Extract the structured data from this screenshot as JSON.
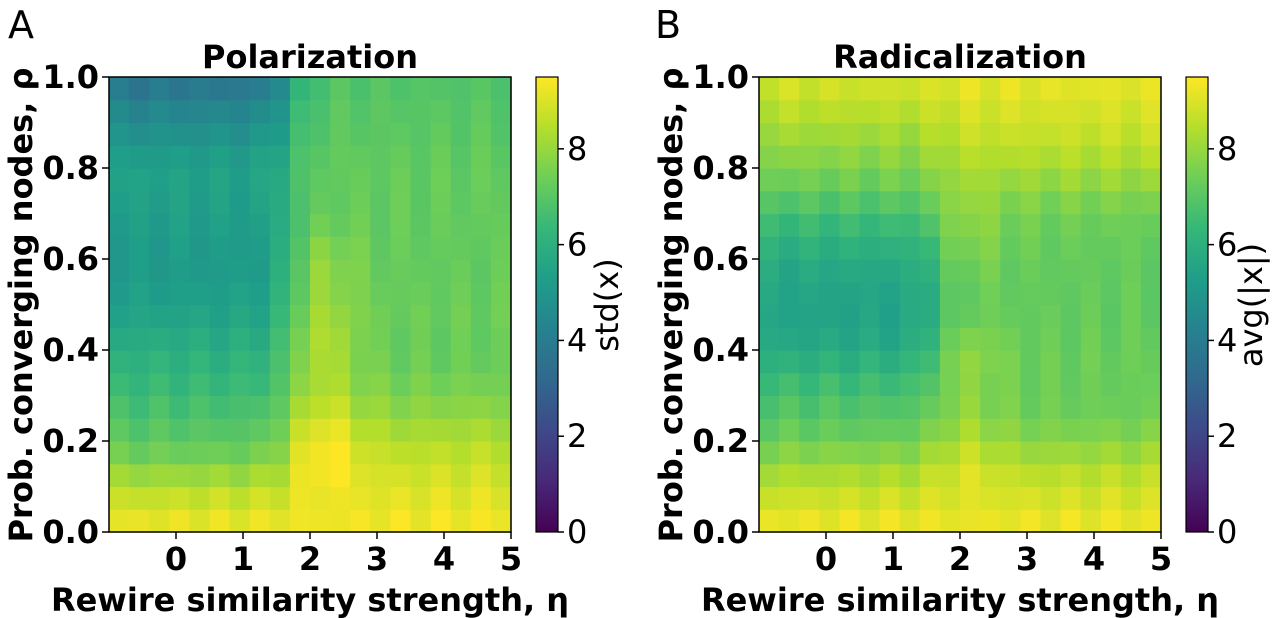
{
  "figure": {
    "background": "#ffffff"
  },
  "chart_data": [
    {
      "type": "heatmap",
      "panel_letter": "A",
      "title": "Polarization",
      "xlabel": "Rewire similarity strength, η",
      "ylabel": "Prob. converging nodes, ρ",
      "xlim": [
        -1,
        5
      ],
      "ylim": [
        0,
        1
      ],
      "xticks": [
        "0",
        "1",
        "2",
        "3",
        "4",
        "5"
      ],
      "xtick_values": [
        0,
        1,
        2,
        3,
        4,
        5
      ],
      "yticks": [
        "0.0",
        "0.2",
        "0.4",
        "0.6",
        "0.8",
        "1.0"
      ],
      "ytick_values": [
        0,
        0.2,
        0.4,
        0.6,
        0.8,
        1.0
      ],
      "colorbar_label": "std(x)",
      "colorbar_ticks": [
        "0",
        "2",
        "4",
        "6",
        "8"
      ],
      "colorbar_tick_values": [
        0,
        2,
        4,
        6,
        8
      ],
      "colorbar_range": [
        0,
        9.5
      ],
      "colormap": "viridis",
      "grid": false,
      "n_cols": 20,
      "n_rows": 20,
      "row_profiles": {
        "rho": [
          0.0,
          0.05,
          0.1,
          0.15,
          0.2,
          0.25,
          0.3,
          0.35,
          0.4,
          0.45,
          0.5,
          0.55,
          0.6,
          0.65,
          0.7,
          0.75,
          0.8,
          0.85,
          0.9,
          0.95,
          1.0
        ],
        "left_region": [
          9.4,
          8.9,
          8.5,
          7.6,
          7.1,
          6.8,
          6.5,
          6.2,
          6.0,
          5.6,
          5.4,
          5.2,
          5.1,
          5.2,
          5.3,
          5.4,
          5.4,
          5.0,
          4.6,
          4.2,
          3.5
        ],
        "right_region": [
          9.4,
          9.2,
          9.0,
          8.7,
          8.4,
          8.0,
          7.6,
          7.4,
          7.2,
          7.3,
          7.3,
          7.2,
          7.2,
          7.2,
          7.2,
          7.2,
          7.2,
          7.1,
          7.0,
          7.0,
          6.8
        ]
      },
      "transition_eta": 1.7,
      "peak_eta": 2.2,
      "peak_extra": [
        0,
        0,
        0.4,
        0.9,
        1.1,
        1.0,
        0.9,
        0.9,
        1.2,
        1.0,
        0.8,
        0.7,
        0.8,
        0.3,
        0.1,
        0,
        0,
        0,
        0,
        0,
        0
      ]
    },
    {
      "type": "heatmap",
      "panel_letter": "B",
      "title": "Radicalization",
      "xlabel": "Rewire similarity strength, η",
      "ylabel": "Prob. converging nodes, ρ",
      "xlim": [
        -1,
        5
      ],
      "ylim": [
        0,
        1
      ],
      "xticks": [
        "0",
        "1",
        "2",
        "3",
        "4",
        "5"
      ],
      "xtick_values": [
        0,
        1,
        2,
        3,
        4,
        5
      ],
      "yticks": [
        "0.0",
        "0.2",
        "0.4",
        "0.6",
        "0.8",
        "1.0"
      ],
      "ytick_values": [
        0,
        0.2,
        0.4,
        0.6,
        0.8,
        1.0
      ],
      "colorbar_label": "avg(|x|)",
      "colorbar_ticks": [
        "0",
        "2",
        "4",
        "6",
        "8"
      ],
      "colorbar_tick_values": [
        0,
        2,
        4,
        6,
        8
      ],
      "colorbar_range": [
        0,
        9.5
      ],
      "colormap": "viridis",
      "grid": false,
      "n_cols": 20,
      "n_rows": 20,
      "row_profiles": {
        "rho": [
          0.0,
          0.05,
          0.1,
          0.15,
          0.2,
          0.25,
          0.3,
          0.35,
          0.4,
          0.45,
          0.5,
          0.55,
          0.6,
          0.65,
          0.7,
          0.75,
          0.8,
          0.85,
          0.9,
          0.95,
          1.0
        ],
        "left_region": [
          9.4,
          9.0,
          8.6,
          8.0,
          7.4,
          7.0,
          6.7,
          6.3,
          5.8,
          5.5,
          5.5,
          5.6,
          5.8,
          6.2,
          6.6,
          7.2,
          7.6,
          8.0,
          8.3,
          8.7,
          8.9
        ],
        "right_region": [
          9.4,
          9.0,
          8.8,
          8.3,
          7.8,
          7.4,
          7.3,
          7.3,
          7.3,
          7.2,
          7.2,
          7.2,
          7.2,
          7.3,
          7.4,
          7.8,
          8.2,
          8.6,
          8.8,
          9.0,
          9.2
        ]
      },
      "transition_eta": 1.7,
      "peak_eta": 2.1,
      "peak_extra": [
        0,
        0,
        0.3,
        0.6,
        0.6,
        0.6,
        0.5,
        0.6,
        0.7,
        0.3,
        0.1,
        0.2,
        0.4,
        0.5,
        0.6,
        0.3,
        0.1,
        0,
        0,
        0,
        0
      ]
    }
  ]
}
